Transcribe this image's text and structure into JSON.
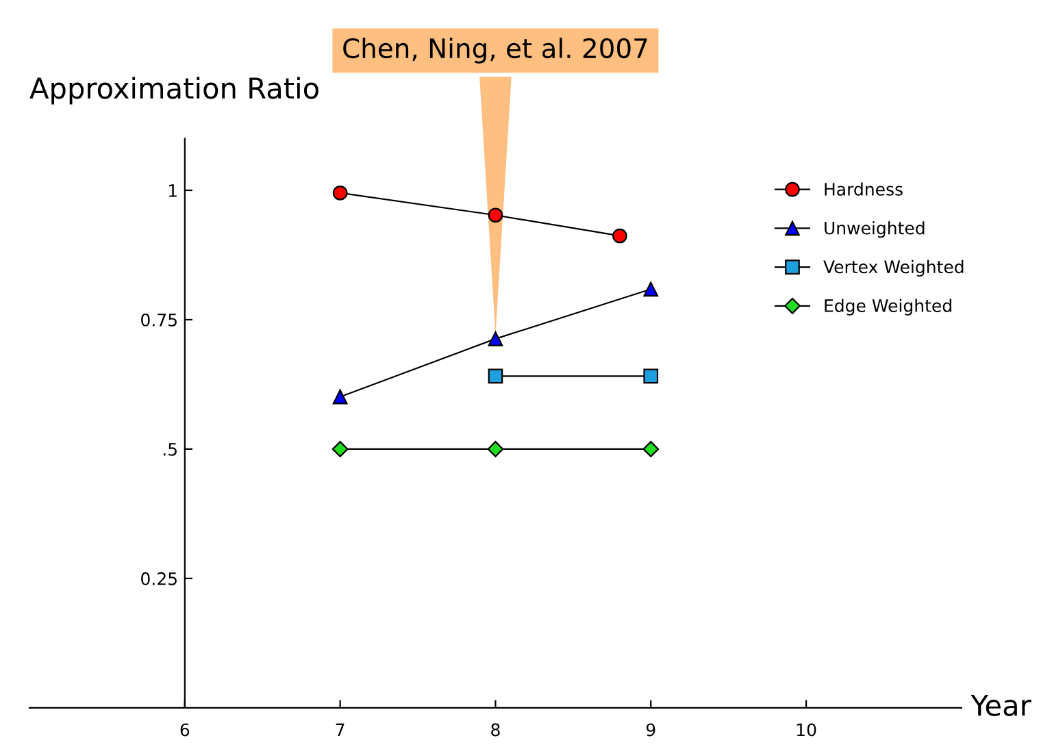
{
  "chart_data": {
    "type": "line",
    "xlabel": "Year",
    "ylabel": "Approximation Ratio",
    "xlim": [
      5,
      11
    ],
    "ylim": [
      0,
      1.1
    ],
    "xticks": [
      6,
      7,
      8,
      9,
      10
    ],
    "yticks": [
      {
        "value": 0.25,
        "label": "0.25"
      },
      {
        "value": 0.5,
        "label": ".5"
      },
      {
        "value": 0.75,
        "label": "0.75"
      },
      {
        "value": 1,
        "label": "1"
      }
    ],
    "series": [
      {
        "name": "Hardness",
        "color": "#ff0000",
        "marker": "circle",
        "x": [
          7,
          8,
          8.8
        ],
        "values": [
          0.995,
          0.952,
          0.912
        ]
      },
      {
        "name": "Unweighted",
        "color": "#0000ff",
        "marker": "triangle",
        "x": [
          7,
          8,
          9
        ],
        "values": [
          0.601,
          0.713,
          0.809
        ]
      },
      {
        "name": "Vertex Weighted",
        "color": "#1ea0e0",
        "marker": "square",
        "x": [
          8,
          9
        ],
        "values": [
          0.641,
          0.641
        ]
      },
      {
        "name": "Edge Weighted",
        "color": "#22dd22",
        "marker": "diamond",
        "x": [
          7,
          8,
          9
        ],
        "values": [
          0.5,
          0.5,
          0.5
        ]
      }
    ],
    "annotations": [
      {
        "text": "Chen, Ning, et al. 2007",
        "x": 8,
        "y": 0.713
      }
    ],
    "legend": "top right",
    "grid": false
  }
}
